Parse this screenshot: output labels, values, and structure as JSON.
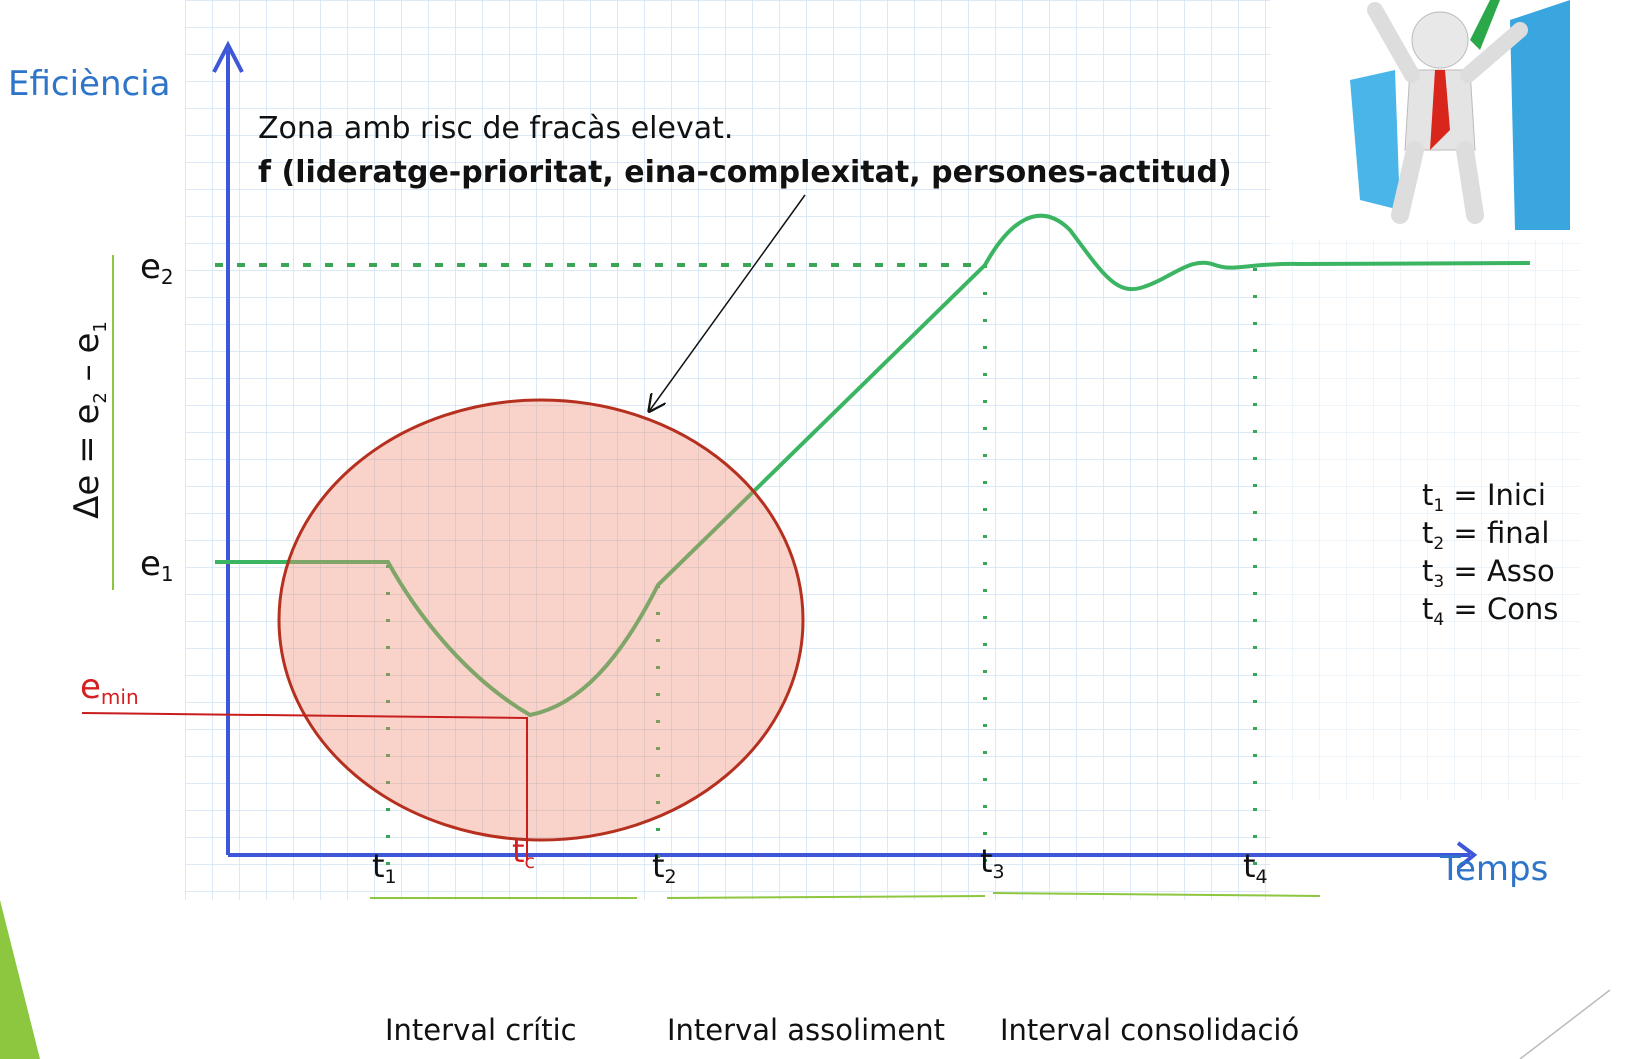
{
  "axes": {
    "y_label": "Eficiència",
    "x_label": "Temps"
  },
  "annotation": {
    "line1": "Zona amb risc de fracàs elevat.",
    "line2": "f (lideratge-prioritat, eina-complexitat, persones-actitud)"
  },
  "levels": [
    {
      "base": "e",
      "sub": "2"
    },
    {
      "base": "e",
      "sub": "1"
    },
    {
      "base": "e",
      "sub": "min"
    }
  ],
  "delta": {
    "lhs": "Δe = e",
    "a_sub": "2",
    "op": " – e",
    "b_sub": "1"
  },
  "times": [
    {
      "base": "t",
      "sub": "1"
    },
    {
      "base": "t",
      "sub": "c"
    },
    {
      "base": "t",
      "sub": "2"
    },
    {
      "base": "t",
      "sub": "3"
    },
    {
      "base": "t",
      "sub": "4"
    }
  ],
  "intervals": [
    "Interval crític",
    "Interval assoliment",
    "Interval consolidació"
  ],
  "legend": [
    {
      "base": "t",
      "sub": "1",
      "text": " = Inici"
    },
    {
      "base": "t",
      "sub": "2",
      "text": " = final"
    },
    {
      "base": "t",
      "sub": "3",
      "text": " = Asso"
    },
    {
      "base": "t",
      "sub": "4",
      "text": " = Cons"
    }
  ]
}
